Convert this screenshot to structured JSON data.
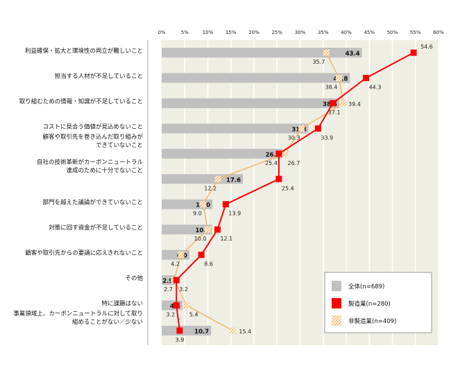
{
  "chart_data": {
    "type": "bar",
    "title": "",
    "xlim": [
      0,
      60
    ],
    "tick_labels": [
      "0%",
      "5%",
      "10%",
      "15%",
      "20%",
      "25%",
      "30%",
      "35%",
      "40%",
      "45%",
      "50%",
      "55%",
      "60%"
    ],
    "categories": [
      [
        "利益確保・拡大と環境性の両立が難しいこと"
      ],
      [
        "担当する人材が不足していること"
      ],
      [
        "取り組むための情報・知識が不足していること"
      ],
      [
        "コストに見合う価値が見込めないこと"
      ],
      [
        "顧客や取引先を巻き込んだ取り組みが",
        "できていないこと"
      ],
      [
        "自社の技術革新がカーボンニュートラル",
        "達成のために十分でないこと"
      ],
      [
        "部門を越えた議論ができていないこと"
      ],
      [
        "対策に回す資金が不足していること"
      ],
      [
        "顧客や取引先からの要請に応えきれないこと"
      ],
      [
        "その他"
      ],
      [
        "特に課題はない"
      ],
      [
        "事業領域上、カーボンニュートラルに対して取り",
        "組めることがない／少ない"
      ]
    ],
    "series": [
      {
        "name": "全体(n=689)",
        "style": "bar",
        "color": "#c0c0c0",
        "values": [
          43.4,
          40.8,
          38.5,
          31.8,
          26.1,
          17.6,
          11.0,
          10.9,
          6.0,
          2.9,
          4.5,
          10.7
        ]
      },
      {
        "name": "製造業(n=280)",
        "style": "line",
        "color": "#ff0000",
        "values": [
          54.6,
          44.3,
          37.1,
          33.9,
          25.4,
          25.4,
          13.9,
          12.1,
          8.6,
          3.2,
          3.2,
          3.9
        ]
      },
      {
        "name": "非製造業(n=409)",
        "style": "line-hatched",
        "color": "#f5b96a",
        "values": [
          35.7,
          38.4,
          39.4,
          30.3,
          26.7,
          12.2,
          9.0,
          10.0,
          4.2,
          2.7,
          5.4,
          15.4
        ]
      }
    ],
    "legend_position": "bottom-right",
    "grid": true
  }
}
